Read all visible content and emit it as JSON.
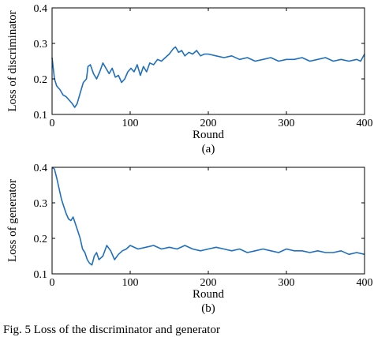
{
  "caption": "Fig. 5 Loss of the discriminator and generator",
  "chart_data": [
    {
      "type": "line",
      "panel_label": "(a)",
      "xlabel": "Round",
      "ylabel": "Loss of discriminator",
      "xlim": [
        0,
        400
      ],
      "ylim": [
        0.1,
        0.4
      ],
      "xticks": [
        0,
        100,
        200,
        300,
        400
      ],
      "yticks": [
        0.1,
        0.2,
        0.3,
        0.4
      ],
      "grid": false,
      "line_color": "#1f6fbf",
      "series": [
        {
          "x": [
            0,
            3,
            6,
            10,
            14,
            18,
            22,
            26,
            29,
            32,
            36,
            40,
            44,
            46,
            49,
            53,
            57,
            61,
            65,
            69,
            73,
            77,
            81,
            85,
            89,
            93,
            97,
            101,
            105,
            109,
            113,
            117,
            121,
            125,
            130,
            135,
            140,
            145,
            150,
            155,
            158,
            162,
            166,
            170,
            175,
            180,
            185,
            190,
            195,
            200,
            210,
            220,
            230,
            240,
            250,
            260,
            270,
            280,
            290,
            300,
            310,
            320,
            330,
            340,
            350,
            360,
            370,
            380,
            390,
            395,
            400
          ],
          "y": [
            0.26,
            0.2,
            0.18,
            0.17,
            0.155,
            0.15,
            0.14,
            0.13,
            0.12,
            0.13,
            0.16,
            0.19,
            0.2,
            0.235,
            0.24,
            0.215,
            0.2,
            0.22,
            0.245,
            0.23,
            0.215,
            0.23,
            0.205,
            0.21,
            0.19,
            0.2,
            0.22,
            0.23,
            0.22,
            0.24,
            0.21,
            0.235,
            0.22,
            0.245,
            0.24,
            0.255,
            0.25,
            0.26,
            0.27,
            0.285,
            0.29,
            0.275,
            0.28,
            0.265,
            0.275,
            0.27,
            0.28,
            0.265,
            0.27,
            0.27,
            0.265,
            0.26,
            0.265,
            0.255,
            0.26,
            0.25,
            0.255,
            0.26,
            0.25,
            0.255,
            0.255,
            0.26,
            0.25,
            0.255,
            0.26,
            0.25,
            0.255,
            0.25,
            0.255,
            0.25,
            0.27
          ]
        }
      ]
    },
    {
      "type": "line",
      "panel_label": "(b)",
      "xlabel": "Round",
      "ylabel": "Loss of generator",
      "xlim": [
        0,
        400
      ],
      "ylim": [
        0.1,
        0.4
      ],
      "xticks": [
        0,
        100,
        200,
        300,
        400
      ],
      "yticks": [
        0.1,
        0.2,
        0.3,
        0.4
      ],
      "grid": false,
      "line_color": "#1f6fbf",
      "series": [
        {
          "x": [
            0,
            3,
            6,
            9,
            12,
            15,
            18,
            21,
            24,
            27,
            30,
            33,
            36,
            39,
            42,
            45,
            48,
            51,
            54,
            57,
            60,
            65,
            70,
            75,
            80,
            85,
            90,
            95,
            100,
            110,
            120,
            130,
            140,
            150,
            160,
            170,
            180,
            190,
            200,
            210,
            220,
            230,
            240,
            250,
            260,
            270,
            280,
            290,
            300,
            310,
            320,
            330,
            340,
            350,
            360,
            370,
            380,
            390,
            400
          ],
          "y": [
            0.4,
            0.395,
            0.37,
            0.34,
            0.31,
            0.29,
            0.27,
            0.255,
            0.25,
            0.26,
            0.24,
            0.22,
            0.2,
            0.17,
            0.16,
            0.14,
            0.13,
            0.125,
            0.15,
            0.16,
            0.14,
            0.15,
            0.18,
            0.165,
            0.14,
            0.155,
            0.165,
            0.17,
            0.18,
            0.17,
            0.175,
            0.18,
            0.17,
            0.175,
            0.17,
            0.18,
            0.17,
            0.165,
            0.17,
            0.175,
            0.17,
            0.165,
            0.17,
            0.16,
            0.165,
            0.17,
            0.165,
            0.16,
            0.17,
            0.165,
            0.165,
            0.16,
            0.165,
            0.16,
            0.16,
            0.165,
            0.155,
            0.16,
            0.155
          ]
        }
      ]
    }
  ]
}
